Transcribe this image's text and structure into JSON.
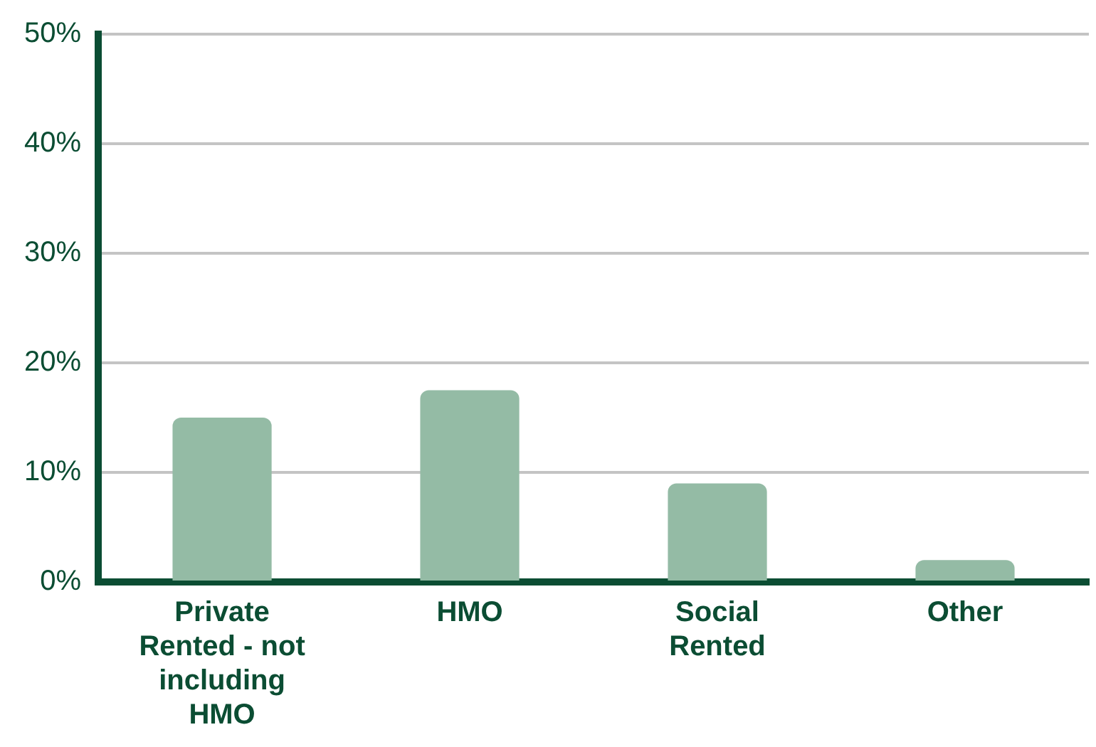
{
  "chart_data": {
    "type": "bar",
    "categories": [
      "Private Rented - not including HMO",
      "HMO",
      "Social Rented",
      "Other"
    ],
    "values": [
      15,
      17.5,
      9,
      2
    ],
    "color": "#94bba5",
    "ylim": [
      0,
      50
    ],
    "yticks": [
      {
        "value": 0,
        "label": "0%"
      },
      {
        "value": 10,
        "label": "10%"
      },
      {
        "value": 20,
        "label": "20%"
      },
      {
        "value": 30,
        "label": "30%"
      },
      {
        "value": 40,
        "label": "40%"
      },
      {
        "value": 50,
        "label": "50%"
      }
    ],
    "grid": "y",
    "legend": false
  }
}
